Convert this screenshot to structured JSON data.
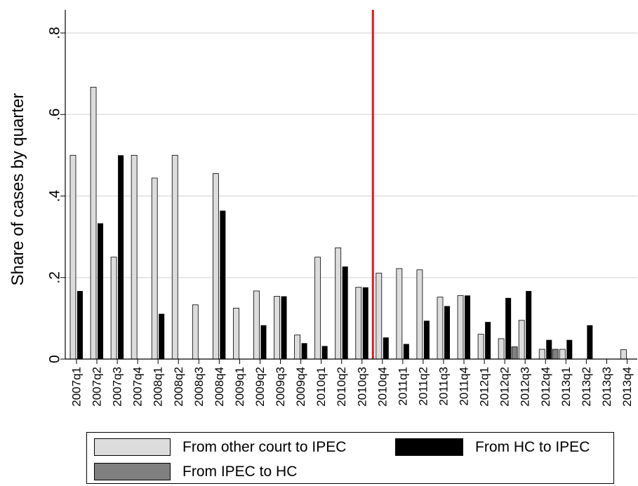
{
  "chart_data": {
    "type": "bar",
    "title": "",
    "xlabel": "",
    "ylabel": "Share of cases by quarter",
    "ylim": [
      0,
      0.85
    ],
    "yticks": [
      0,
      0.2,
      0.4,
      0.6,
      0.8
    ],
    "ytick_labels": [
      "0",
      ".2",
      ".4",
      ".6",
      ".8"
    ],
    "grid": true,
    "legend": "bottom",
    "categories": [
      "2007q1",
      "2007q2",
      "2007q3",
      "2007q4",
      "2008q1",
      "2008q2",
      "2008q3",
      "2008q4",
      "2009q1",
      "2009q2",
      "2009q3",
      "2009q4",
      "2010q1",
      "2010q2",
      "2010q3",
      "2010q4",
      "2011q1",
      "2011q2",
      "2011q3",
      "2011q4",
      "2012q1",
      "2012q2",
      "2012q3",
      "2012q4",
      "2013q1",
      "2013q2",
      "2013q3",
      "2013q4"
    ],
    "vline": {
      "category": "2010q4",
      "color": "#e8151b"
    },
    "series": [
      {
        "name": "From other court to IPEC",
        "color": "#dcdcdc",
        "values": [
          0.5,
          0.667,
          0.25,
          0.5,
          0.444,
          0.5,
          0.133,
          0.455,
          0.125,
          0.167,
          0.154,
          0.059,
          0.25,
          0.273,
          0.176,
          0.211,
          0.222,
          0.219,
          0.152,
          0.156,
          0.061,
          0.05,
          0.095,
          0.024,
          0.024,
          0,
          0,
          0.023
        ]
      },
      {
        "name": "From HC to IPEC",
        "color": "#000000",
        "values": [
          0.167,
          0.333,
          0.5,
          0,
          0.111,
          0,
          0,
          0.364,
          0,
          0.083,
          0.154,
          0.039,
          0.032,
          0.227,
          0.176,
          0.053,
          0.037,
          0.094,
          0.13,
          0.156,
          0.091,
          0.15,
          0.167,
          0.047,
          0.047,
          0.083,
          0,
          0
        ]
      },
      {
        "name": "From IPEC to HC",
        "color": "#808080",
        "values": [
          0,
          0,
          0,
          0,
          0,
          0,
          0,
          0,
          0,
          0,
          0,
          0,
          0,
          0,
          0,
          0,
          0,
          0,
          0,
          0,
          0,
          0.03,
          0,
          0.024,
          0,
          0,
          0,
          0
        ]
      }
    ]
  }
}
